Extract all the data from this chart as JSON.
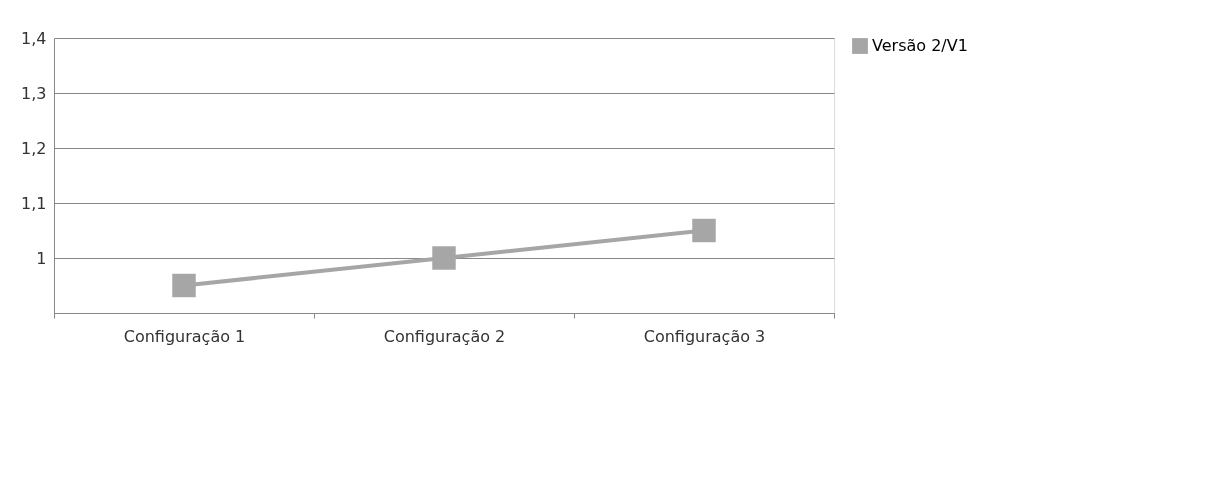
{
  "chart_data": {
    "type": "line",
    "categories": [
      "Configuração 1",
      "Configuração 2",
      "Configuração 3"
    ],
    "series": [
      {
        "name": "Versão 2/V1",
        "color": "#a6a6a6",
        "values": [
          0.95,
          1.0,
          1.05
        ]
      }
    ],
    "ylim": [
      0.9,
      1.4
    ],
    "yticks": [
      {
        "value": 0.9,
        "label": null
      },
      1,
      {
        "value": 1.1,
        "label": "1,1"
      },
      {
        "value": 1.2,
        "label": "1,2"
      },
      {
        "value": 1.3,
        "label": "1,3"
      },
      {
        "value": 1.4,
        "label": "1,4"
      }
    ],
    "grid": "y",
    "legend": "right",
    "marker": "square",
    "line_style": "solid"
  }
}
